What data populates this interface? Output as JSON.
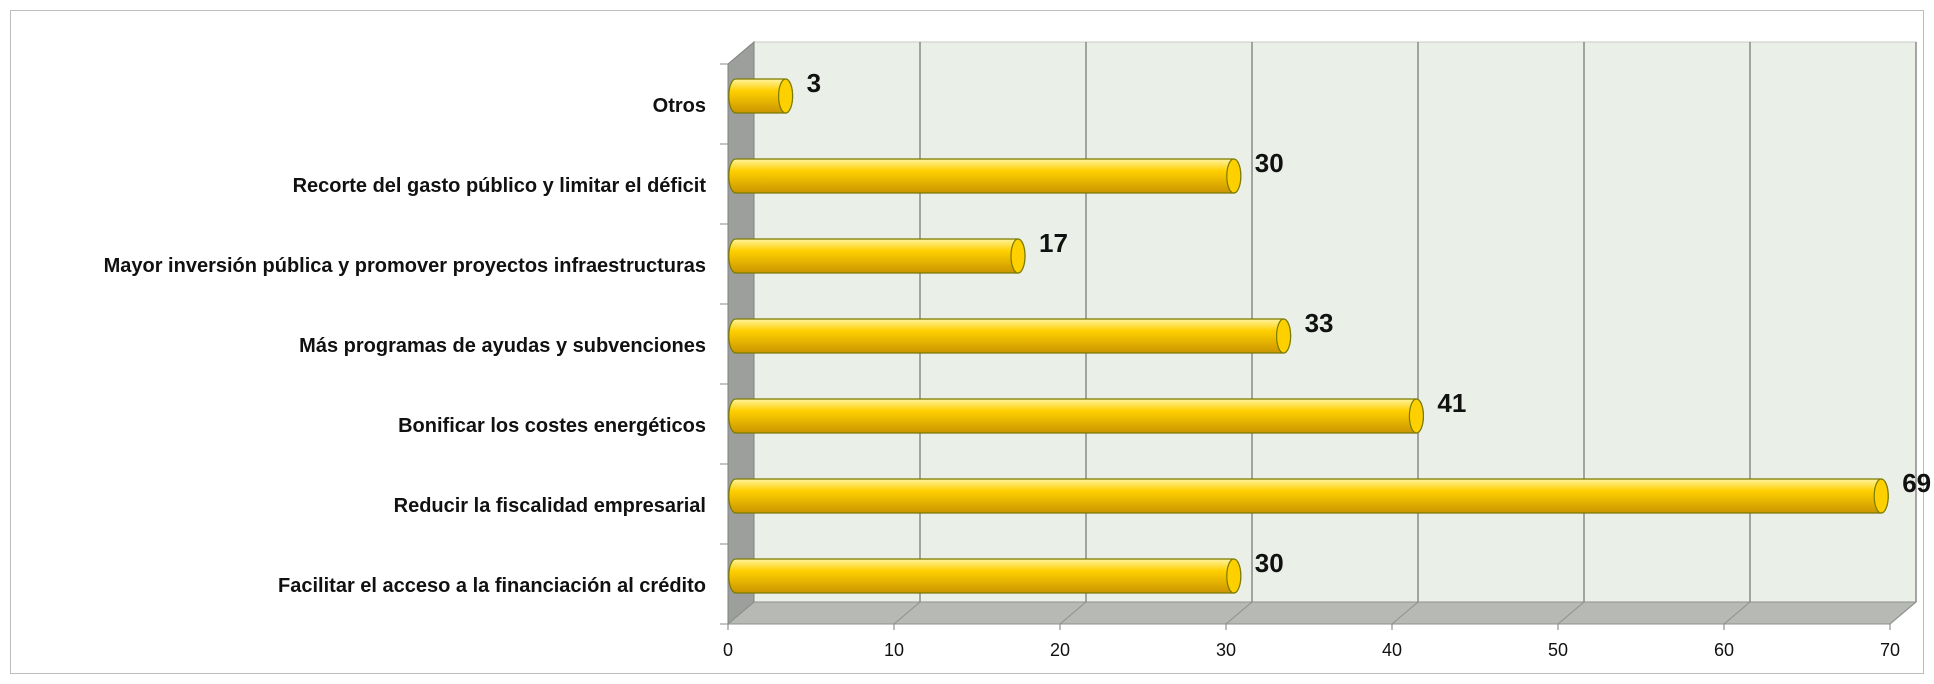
{
  "chart_data": {
    "type": "bar",
    "orientation": "horizontal",
    "style": "3d-cylinder",
    "title": "",
    "xlabel": "",
    "ylabel": "",
    "categories": [
      "Facilitar el acceso a la financiación al crédito",
      "Reducir la fiscalidad empresarial",
      "Bonificar los costes energéticos",
      "Más programas de ayudas y subvenciones",
      "Mayor inversión pública y promover proyectos infraestructuras",
      "Recorte del gasto público y limitar el déficit",
      "Otros"
    ],
    "values": [
      30,
      69,
      41,
      33,
      17,
      30,
      3
    ],
    "xlim": [
      0,
      70
    ],
    "ticks": [
      0,
      10,
      20,
      30,
      40,
      50,
      60,
      70
    ],
    "grid": "vertical",
    "legend": "none",
    "colors": {
      "bar": "#ffd000",
      "bar_light": "#fff3a0",
      "bar_dark": "#c99400",
      "bar_edge": "#7a7a00",
      "wall": "#eaf0e8",
      "side_wall": "#9c9f9b",
      "floor": "#b6b9b4",
      "grid": "#8a8a8a"
    }
  }
}
